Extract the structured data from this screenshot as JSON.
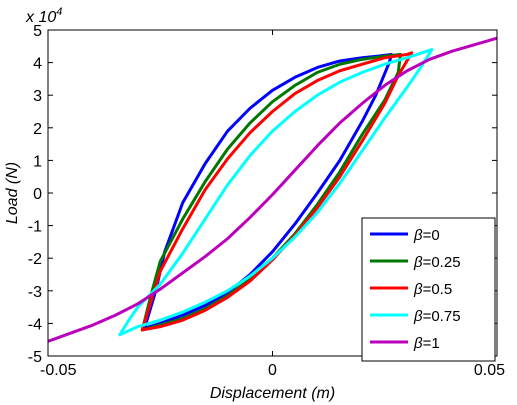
{
  "chart_data": {
    "type": "line",
    "title": "",
    "xlabel": "Displacement (m)",
    "ylabel": "Load (N)",
    "y_exponent_label": "x 10",
    "y_exponent": "4",
    "xlim": [
      -0.05,
      0.05
    ],
    "ylim": [
      -5,
      5
    ],
    "x_ticks": [
      -0.05,
      0,
      0.05
    ],
    "x_tick_labels": [
      "-0.05",
      "0",
      "0.05"
    ],
    "y_ticks": [
      -5,
      -4,
      -3,
      -2,
      -1,
      0,
      1,
      2,
      3,
      4,
      5
    ],
    "y_tick_labels": [
      "-5",
      "-4",
      "-3",
      "-2",
      "-1",
      "0",
      "1",
      "2",
      "3",
      "4",
      "5"
    ],
    "grid": false,
    "legend_position": "bottom-right",
    "series": [
      {
        "name": "β=0",
        "symbol": "β",
        "value": "=0",
        "color": "#0000ff",
        "x": [
          -0.0285,
          -0.026,
          -0.024,
          -0.02,
          -0.015,
          -0.01,
          -0.005,
          0.0,
          0.005,
          0.01,
          0.015,
          0.02,
          0.0235,
          0.0265,
          0.026,
          0.023,
          0.02,
          0.015,
          0.01,
          0.005,
          0.0,
          -0.005,
          -0.01,
          -0.015,
          -0.02,
          -0.025,
          -0.0285
        ],
        "y": [
          -4.15,
          -3.0,
          -1.8,
          -0.3,
          0.9,
          1.9,
          2.6,
          3.15,
          3.55,
          3.85,
          4.05,
          4.15,
          4.2,
          4.25,
          4.0,
          3.0,
          2.2,
          1.0,
          0.0,
          -0.95,
          -1.8,
          -2.5,
          -3.05,
          -3.45,
          -3.75,
          -4.0,
          -4.15
        ]
      },
      {
        "name": "β=0.25",
        "symbol": "β",
        "value": "=0.25",
        "color": "#007700",
        "x": [
          -0.029,
          -0.027,
          -0.025,
          -0.02,
          -0.015,
          -0.01,
          -0.005,
          0.0,
          0.005,
          0.01,
          0.015,
          0.02,
          0.025,
          0.0285,
          0.028,
          0.025,
          0.02,
          0.015,
          0.01,
          0.005,
          0.0,
          -0.005,
          -0.01,
          -0.015,
          -0.02,
          -0.025,
          -0.029
        ],
        "y": [
          -4.2,
          -3.1,
          -2.1,
          -0.8,
          0.35,
          1.35,
          2.15,
          2.8,
          3.3,
          3.7,
          3.95,
          4.1,
          4.2,
          4.25,
          3.7,
          2.85,
          1.8,
          0.65,
          -0.35,
          -1.25,
          -2.0,
          -2.65,
          -3.15,
          -3.55,
          -3.85,
          -4.05,
          -4.2
        ]
      },
      {
        "name": "β=0.5",
        "symbol": "β",
        "value": "=0.5",
        "color": "#ff0000",
        "x": [
          -0.029,
          -0.027,
          -0.025,
          -0.02,
          -0.015,
          -0.01,
          -0.005,
          0.0,
          0.005,
          0.01,
          0.015,
          0.02,
          0.025,
          0.03,
          0.031,
          0.028,
          0.025,
          0.02,
          0.015,
          0.01,
          0.005,
          0.0,
          -0.005,
          -0.01,
          -0.015,
          -0.02,
          -0.025,
          -0.029
        ],
        "y": [
          -4.2,
          -3.3,
          -2.4,
          -1.1,
          0.1,
          1.05,
          1.85,
          2.5,
          3.05,
          3.45,
          3.75,
          3.95,
          4.15,
          4.25,
          4.3,
          3.6,
          2.75,
          1.6,
          0.5,
          -0.45,
          -1.3,
          -2.05,
          -2.7,
          -3.2,
          -3.6,
          -3.9,
          -4.1,
          -4.2
        ]
      },
      {
        "name": "β=0.75",
        "symbol": "β",
        "value": "=0.75",
        "color": "#00ffff",
        "x": [
          -0.034,
          -0.032,
          -0.03,
          -0.025,
          -0.02,
          -0.015,
          -0.01,
          -0.005,
          0.0,
          0.005,
          0.01,
          0.015,
          0.02,
          0.025,
          0.03,
          0.0355,
          0.033,
          0.03,
          0.025,
          0.02,
          0.015,
          0.01,
          0.005,
          0.0,
          -0.005,
          -0.01,
          -0.015,
          -0.02,
          -0.025,
          -0.03,
          -0.034
        ],
        "y": [
          -4.35,
          -3.9,
          -3.5,
          -2.8,
          -1.85,
          -0.8,
          0.25,
          1.15,
          1.9,
          2.5,
          3.0,
          3.4,
          3.7,
          3.95,
          4.15,
          4.4,
          3.85,
          3.25,
          2.3,
          1.3,
          0.3,
          -0.6,
          -1.35,
          -2.0,
          -2.55,
          -3.0,
          -3.35,
          -3.65,
          -3.9,
          -4.1,
          -4.35
        ]
      },
      {
        "name": "β=1",
        "symbol": "β",
        "value": "=1",
        "color": "#bb00bb",
        "x": [
          -0.05,
          -0.045,
          -0.04,
          -0.035,
          -0.03,
          -0.025,
          -0.02,
          -0.015,
          -0.01,
          -0.005,
          0.0,
          0.005,
          0.01,
          0.015,
          0.02,
          0.025,
          0.03,
          0.035,
          0.04,
          0.045,
          0.05
        ],
        "y": [
          -4.55,
          -4.3,
          -4.05,
          -3.75,
          -3.4,
          -2.95,
          -2.45,
          -1.95,
          -1.4,
          -0.75,
          -0.05,
          0.7,
          1.45,
          2.15,
          2.75,
          3.3,
          3.75,
          4.1,
          4.35,
          4.55,
          4.75
        ]
      }
    ]
  }
}
